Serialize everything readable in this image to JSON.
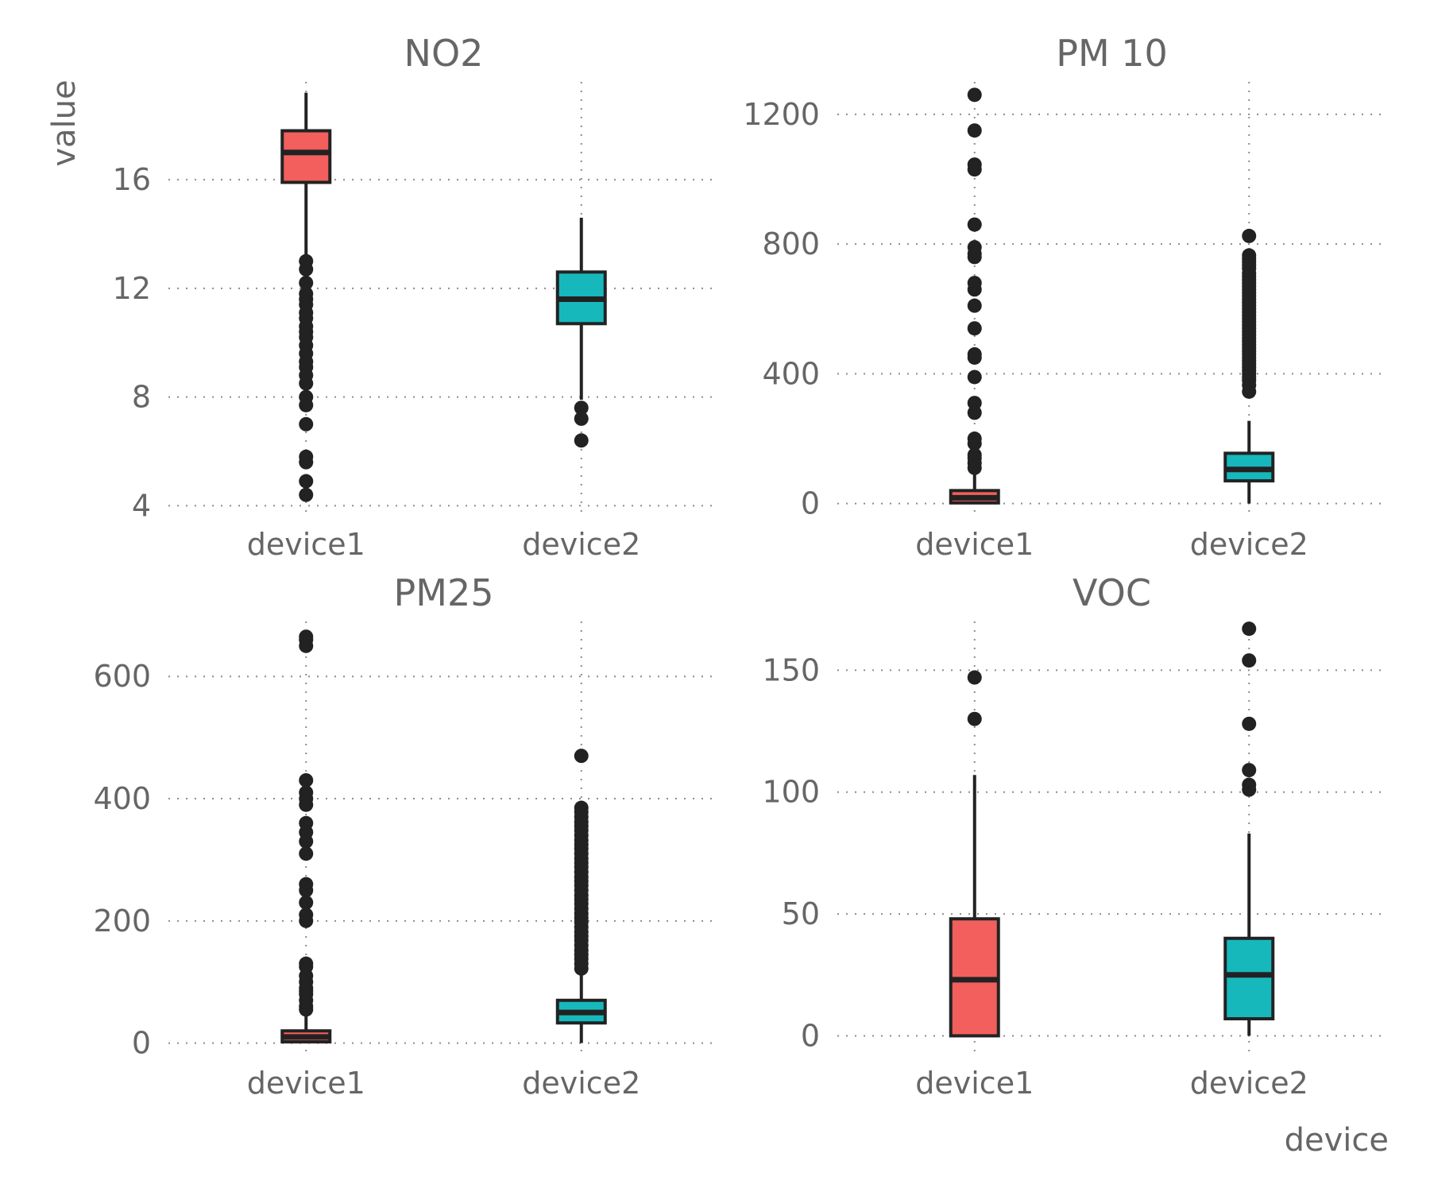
{
  "chart_data": {
    "type": "box",
    "xlabel": "device",
    "ylabel": "value",
    "legend": "none",
    "grid": "dotted major gridlines",
    "colors": {
      "device1": "#F25F5C",
      "device2": "#16B8BC"
    },
    "panels": [
      {
        "title": "NO2",
        "categories": [
          "device1",
          "device2"
        ],
        "ylim": [
          3.6,
          19.6
        ],
        "yticks": [
          4,
          8,
          12,
          16
        ],
        "boxes": [
          {
            "category": "device1",
            "q1": 15.9,
            "median": 17.0,
            "q3": 17.8,
            "whisker_low": 13.1,
            "whisker_high": 19.2,
            "outliers": [
              13.0,
              12.7,
              12.2,
              11.8,
              11.6,
              11.4,
              11.1,
              10.9,
              10.6,
              10.4,
              10.2,
              9.9,
              9.6,
              9.3,
              9.1,
              8.8,
              8.5,
              8.0,
              7.7,
              7.0,
              5.8,
              5.6,
              4.9,
              4.4
            ]
          },
          {
            "category": "device2",
            "q1": 10.7,
            "median": 11.6,
            "q3": 12.6,
            "whisker_low": 7.9,
            "whisker_high": 14.6,
            "outliers": [
              7.6,
              7.2,
              6.4
            ]
          }
        ]
      },
      {
        "title": "PM 10",
        "categories": [
          "device1",
          "device2"
        ],
        "ylim": [
          -40,
          1300
        ],
        "yticks": [
          0,
          400,
          800,
          1200
        ],
        "boxes": [
          {
            "category": "device1",
            "q1": 2,
            "median": 18,
            "q3": 40,
            "whisker_low": 0,
            "whisker_high": 95,
            "outliers": [
              1260,
              1150,
              1045,
              1030,
              860,
              790,
              770,
              760,
              680,
              660,
              610,
              540,
              460,
              450,
              390,
              310,
              280,
              200,
              185,
              150,
              140,
              125,
              110
            ]
          },
          {
            "category": "device2",
            "q1": 70,
            "median": 105,
            "q3": 155,
            "whisker_low": 0,
            "whisker_high": 255,
            "outliers": [
              825,
              765,
              755,
              745,
              735,
              725,
              710,
              700,
              690,
              680,
              670,
              660,
              650,
              640,
              630,
              620,
              610,
              600,
              590,
              580,
              570,
              560,
              550,
              540,
              530,
              520,
              510,
              500,
              490,
              480,
              470,
              460,
              450,
              440,
              430,
              420,
              410,
              400,
              390,
              380,
              365,
              345
            ]
          }
        ]
      },
      {
        "title": "PM25",
        "categories": [
          "device1",
          "device2"
        ],
        "ylim": [
          -20,
          690
        ],
        "yticks": [
          0,
          200,
          400,
          600
        ],
        "boxes": [
          {
            "category": "device1",
            "q1": 2,
            "median": 10,
            "q3": 20,
            "whisker_low": 0,
            "whisker_high": 48,
            "outliers": [
              665,
              660,
              650,
              430,
              410,
              400,
              390,
              360,
              345,
              330,
              310,
              260,
              250,
              230,
              210,
              200,
              130,
              125,
              110,
              100,
              90,
              85,
              80,
              70,
              60,
              55
            ]
          },
          {
            "category": "device2",
            "q1": 33,
            "median": 50,
            "q3": 70,
            "whisker_low": 0,
            "whisker_high": 115,
            "outliers": [
              470,
              385,
              378,
              370,
              362,
              355,
              348,
              340,
              332,
              325,
              318,
              310,
              302,
              295,
              288,
              280,
              272,
              265,
              258,
              250,
              242,
              235,
              228,
              220,
              212,
              205,
              198,
              190,
              182,
              175,
              168,
              160,
              152,
              145,
              138,
              130,
              122
            ]
          }
        ]
      },
      {
        "title": "VOC",
        "categories": [
          "device1",
          "device2"
        ],
        "ylim": [
          -8,
          170
        ],
        "yticks": [
          0,
          50,
          100,
          150
        ],
        "boxes": [
          {
            "category": "device1",
            "q1": 0,
            "median": 23,
            "q3": 48,
            "whisker_low": 0,
            "whisker_high": 107,
            "outliers": [
              147,
              130
            ]
          },
          {
            "category": "device2",
            "q1": 7,
            "median": 25,
            "q3": 40,
            "whisker_low": 0,
            "whisker_high": 83,
            "outliers": [
              167,
              154,
              128,
              109,
              103,
              101
            ]
          }
        ]
      }
    ]
  }
}
